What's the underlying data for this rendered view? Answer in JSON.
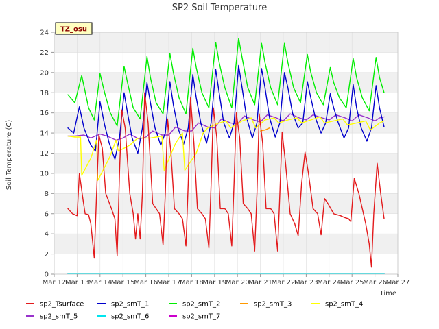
{
  "chart_data": {
    "type": "line",
    "title": "SP2 Soil Temperature",
    "xlabel": "Time",
    "ylabel": "Soil Temperature (C)",
    "badge": "TZ_osu",
    "xlim": [
      12,
      27
    ],
    "ylim": [
      0,
      24
    ],
    "x_ticks": [
      12,
      13,
      14,
      15,
      16,
      17,
      18,
      19,
      20,
      21,
      22,
      23,
      24,
      25,
      26,
      27
    ],
    "x_tick_labels": [
      "Mar 12",
      "Mar 13",
      "Mar 14",
      "Mar 15",
      "Mar 16",
      "Mar 17",
      "Mar 18",
      "Mar 19",
      "Mar 20",
      "Mar 21",
      "Mar 22",
      "Mar 23",
      "Mar 24",
      "Mar 25",
      "Mar 26",
      "Mar 27"
    ],
    "y_ticks": [
      0,
      2,
      4,
      6,
      8,
      10,
      12,
      14,
      16,
      18,
      20,
      22,
      24
    ],
    "y_tick_labels": [
      "0",
      "2",
      "4",
      "6",
      "8",
      "10",
      "12",
      "14",
      "16",
      "18",
      "20",
      "22",
      "24"
    ],
    "legend": [
      "sp2_Tsurface",
      "sp2_smT_1",
      "sp2_smT_2",
      "sp2_smT_3",
      "sp2_smT_4",
      "sp2_smT_5",
      "sp2_smT_6",
      "sp2_smT_7"
    ],
    "series": [
      {
        "name": "sp2_Tsurface",
        "color": "#e31a1c",
        "x": [
          12.6,
          12.8,
          13.0,
          13.1,
          13.25,
          13.35,
          13.5,
          13.6,
          13.75,
          13.85,
          13.95,
          14.1,
          14.25,
          14.5,
          14.65,
          14.75,
          14.85,
          14.95,
          15.1,
          15.3,
          15.45,
          15.55,
          15.65,
          15.75,
          15.85,
          15.95,
          16.1,
          16.3,
          16.45,
          16.6,
          16.75,
          16.85,
          16.95,
          17.1,
          17.25,
          17.45,
          17.6,
          17.75,
          17.85,
          17.95,
          18.1,
          18.25,
          18.45,
          18.6,
          18.75,
          18.85,
          18.95,
          19.1,
          19.25,
          19.45,
          19.6,
          19.75,
          19.85,
          19.95,
          20.1,
          20.25,
          20.45,
          20.6,
          20.75,
          20.85,
          20.95,
          21.1,
          21.25,
          21.45,
          21.6,
          21.75,
          21.85,
          21.95,
          22.1,
          22.3,
          22.5,
          22.65,
          22.8,
          22.95,
          23.1,
          23.3,
          23.5,
          23.65,
          23.8,
          23.95,
          24.2,
          24.5,
          24.7,
          24.85,
          24.95,
          25.1,
          25.3,
          25.45,
          25.6,
          25.75,
          25.85,
          25.95,
          26.1,
          26.25,
          26.4
        ],
        "y": [
          6.5,
          6.0,
          5.8,
          10.0,
          7.5,
          6.0,
          5.9,
          5.0,
          1.6,
          8.0,
          13.8,
          12.5,
          8.0,
          6.5,
          5.5,
          1.8,
          10.0,
          16.3,
          14.5,
          8.0,
          6.0,
          3.5,
          6.0,
          3.5,
          8.0,
          18.0,
          15.0,
          7.0,
          6.5,
          6.0,
          2.9,
          8.0,
          15.4,
          12.0,
          6.5,
          6.0,
          5.5,
          2.8,
          9.0,
          17.5,
          13.0,
          6.5,
          6.0,
          5.5,
          2.6,
          9.0,
          16.5,
          13.5,
          6.5,
          6.5,
          6.0,
          2.8,
          9.0,
          16.0,
          13.5,
          7.0,
          6.5,
          6.0,
          2.3,
          8.0,
          15.9,
          13.0,
          6.5,
          6.5,
          6.0,
          2.3,
          8.0,
          14.1,
          11.0,
          6.0,
          5.0,
          3.8,
          9.0,
          12.1,
          10.0,
          6.5,
          6.0,
          3.9,
          7.5,
          7.0,
          6.0,
          5.8,
          5.6,
          5.5,
          5.2,
          9.5,
          8.0,
          6.5,
          5.0,
          3.0,
          0.7,
          6.0,
          11.0,
          8.0,
          5.5
        ]
      },
      {
        "name": "sp2_smT_1",
        "color": "#0000cc",
        "x": [
          12.6,
          12.85,
          13.1,
          13.3,
          13.6,
          13.8,
          14.0,
          14.2,
          14.4,
          14.65,
          14.85,
          15.05,
          15.2,
          15.4,
          15.65,
          15.85,
          16.05,
          16.2,
          16.4,
          16.65,
          16.85,
          17.05,
          17.2,
          17.4,
          17.65,
          17.85,
          18.05,
          18.2,
          18.4,
          18.65,
          18.85,
          19.05,
          19.2,
          19.4,
          19.65,
          19.85,
          20.05,
          20.2,
          20.4,
          20.65,
          20.85,
          21.05,
          21.2,
          21.4,
          21.65,
          21.85,
          22.05,
          22.2,
          22.4,
          22.65,
          22.85,
          23.05,
          23.2,
          23.4,
          23.65,
          23.85,
          24.05,
          24.2,
          24.4,
          24.65,
          24.85,
          25.05,
          25.2,
          25.4,
          25.65,
          25.85,
          26.05,
          26.2,
          26.4
        ],
        "y": [
          14.5,
          14.0,
          16.6,
          14.5,
          12.8,
          12.2,
          17.1,
          14.8,
          13.0,
          11.4,
          13.5,
          18.0,
          16.0,
          13.5,
          12.0,
          14.5,
          19.0,
          17.0,
          14.5,
          12.8,
          14.0,
          19.1,
          16.8,
          14.5,
          12.9,
          14.5,
          19.8,
          17.5,
          15.0,
          13.0,
          15.0,
          20.3,
          18.0,
          15.0,
          13.5,
          15.0,
          20.7,
          18.5,
          15.5,
          13.5,
          15.0,
          20.4,
          18.5,
          15.5,
          13.6,
          15.0,
          20.0,
          18.5,
          16.0,
          14.5,
          15.0,
          19.1,
          17.5,
          15.5,
          14.0,
          15.0,
          17.9,
          16.5,
          15.0,
          13.5,
          14.5,
          18.8,
          16.5,
          14.5,
          13.2,
          14.5,
          18.7,
          16.5,
          14.6
        ]
      },
      {
        "name": "sp2_smT_2",
        "color": "#00ee00",
        "x": [
          12.6,
          12.9,
          13.2,
          13.5,
          13.75,
          14.0,
          14.2,
          14.45,
          14.75,
          15.05,
          15.2,
          15.45,
          15.75,
          16.05,
          16.2,
          16.45,
          16.75,
          17.05,
          17.2,
          17.45,
          17.75,
          18.05,
          18.2,
          18.45,
          18.75,
          19.05,
          19.2,
          19.45,
          19.75,
          20.05,
          20.2,
          20.45,
          20.75,
          21.05,
          21.2,
          21.45,
          21.75,
          22.05,
          22.2,
          22.45,
          22.75,
          23.05,
          23.2,
          23.45,
          23.75,
          24.05,
          24.2,
          24.45,
          24.75,
          25.05,
          25.2,
          25.45,
          25.75,
          26.05,
          26.2,
          26.4
        ],
        "y": [
          17.8,
          17.0,
          19.7,
          16.5,
          15.3,
          19.9,
          18.0,
          16.0,
          14.7,
          20.6,
          19.0,
          16.5,
          15.4,
          21.6,
          19.5,
          17.0,
          15.9,
          21.9,
          20.0,
          17.5,
          15.9,
          22.4,
          20.5,
          18.0,
          16.5,
          23.0,
          21.0,
          18.5,
          16.5,
          23.4,
          21.5,
          18.5,
          16.8,
          22.9,
          21.0,
          18.5,
          16.8,
          22.9,
          21.0,
          18.5,
          17.0,
          21.8,
          20.0,
          18.0,
          16.8,
          20.5,
          19.0,
          17.5,
          16.5,
          21.4,
          19.5,
          17.5,
          16.2,
          21.5,
          19.5,
          18.0
        ]
      },
      {
        "name": "sp2_smT_3",
        "color": "#ff9900",
        "x": [
          21.0,
          21.2,
          21.4
        ],
        "y": [
          14.2,
          14.3,
          14.5
        ]
      },
      {
        "name": "sp2_smT_4",
        "color": "#ffff00",
        "x": [
          12.6,
          12.9,
          13.15,
          13.2,
          13.6,
          13.85,
          13.9,
          14.4,
          14.7,
          14.8,
          15.3,
          15.6,
          15.7,
          16.2,
          16.7,
          16.8,
          17.3,
          17.6,
          17.7,
          18.2,
          18.5,
          18.7,
          19.2,
          19.5,
          19.7,
          20.2,
          20.6,
          20.8,
          21.2,
          21.6,
          21.8,
          22.2,
          22.6,
          22.8,
          23.2,
          23.6,
          23.8,
          24.2,
          24.6,
          24.8,
          25.2,
          25.6,
          25.8,
          26.2,
          26.4
        ],
        "y": [
          13.7,
          13.6,
          13.6,
          9.8,
          11.5,
          13.3,
          9.3,
          11.5,
          13.3,
          12.2,
          12.8,
          13.4,
          13.5,
          13.5,
          13.7,
          10.3,
          13.0,
          14.0,
          10.3,
          12.0,
          14.0,
          14.5,
          15.0,
          15.2,
          14.5,
          15.2,
          15.5,
          14.5,
          15.3,
          15.5,
          15.0,
          15.3,
          15.5,
          15.0,
          15.3,
          15.6,
          15.0,
          15.2,
          15.4,
          14.8,
          15.0,
          15.2,
          14.3,
          15.0,
          15.2
        ]
      },
      {
        "name": "sp2_smT_5",
        "color": "#9932cc",
        "x": [
          12.6,
          12.9,
          13.3,
          13.6,
          14.0,
          14.3,
          14.7,
          15.0,
          15.3,
          15.7,
          16.0,
          16.3,
          16.7,
          17.0,
          17.3,
          17.7,
          18.0,
          18.3,
          18.7,
          19.0,
          19.3,
          19.7,
          20.0,
          20.3,
          20.7,
          21.0,
          21.3,
          21.7,
          22.0,
          22.3,
          22.7,
          23.0,
          23.3,
          23.7,
          24.0,
          24.3,
          24.7,
          25.0,
          25.3,
          25.7,
          26.0,
          26.2,
          26.4
        ],
        "y": [
          13.7,
          13.7,
          13.8,
          13.5,
          13.9,
          13.7,
          13.3,
          13.5,
          13.9,
          13.4,
          13.6,
          14.2,
          13.8,
          13.8,
          14.6,
          14.2,
          14.2,
          15.0,
          14.6,
          14.5,
          15.4,
          15.0,
          14.9,
          15.7,
          15.3,
          15.1,
          15.8,
          15.5,
          15.2,
          15.9,
          15.5,
          15.3,
          15.8,
          15.5,
          15.3,
          15.8,
          15.5,
          15.2,
          15.8,
          15.5,
          15.2,
          15.5,
          15.6
        ]
      },
      {
        "name": "sp2_smT_6",
        "color": "#00e5ee",
        "x": [
          12.6,
          26.4
        ],
        "y": [
          0.05,
          0.05
        ]
      },
      {
        "name": "sp2_smT_7",
        "color": "#cc00cc",
        "x": [
          12.6,
          26.4
        ],
        "y": [
          0.05,
          0.05
        ]
      }
    ]
  }
}
